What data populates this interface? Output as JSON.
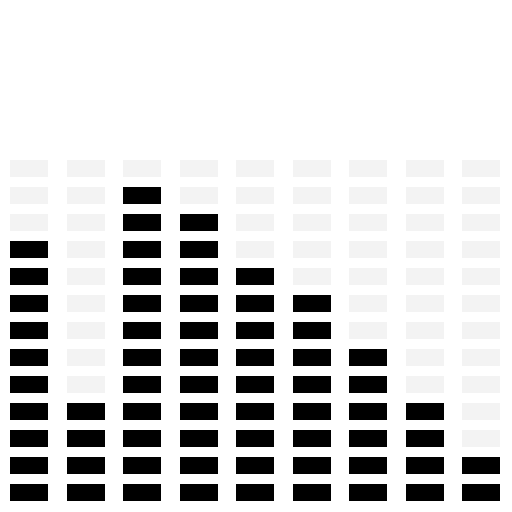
{
  "meter": {
    "segments_per_bar": 13,
    "levels": [
      10,
      4,
      12,
      11,
      9,
      8,
      6,
      4,
      2
    ],
    "colors": {
      "active": "#000000",
      "inactive": "#f3f3f3",
      "background": "#ffffff"
    }
  }
}
